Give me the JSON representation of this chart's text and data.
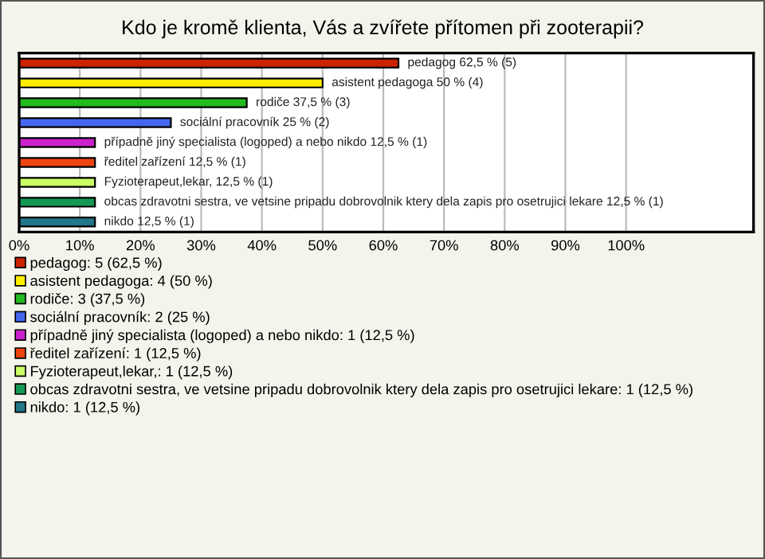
{
  "chart_data": {
    "type": "bar",
    "orientation": "horizontal",
    "title": "Kdo je kromě klienta, Vás a zvířete přítomen při zooterapii?",
    "categories": [
      null,
      null,
      null,
      null,
      null,
      null,
      null,
      null,
      null
    ],
    "series": [
      {
        "name": "pedagog: 5 (62,5 %)",
        "color": "#cc2200",
        "values": [
          62.5,
          null,
          null,
          null,
          null,
          null,
          null,
          null,
          null
        ],
        "value_labels": [
          "pedagog 62,5 % (5)",
          null,
          null,
          null,
          null,
          null,
          null,
          null,
          null
        ]
      },
      {
        "name": "asistent pedagoga: 4 (50 %)",
        "color": "#ffee00",
        "values": [
          null,
          50,
          null,
          null,
          null,
          null,
          null,
          null,
          null
        ],
        "value_labels": [
          null,
          "asistent pedagoga 50 % (4)",
          null,
          null,
          null,
          null,
          null,
          null,
          null
        ]
      },
      {
        "name": "rodiče: 3 (37,5 %)",
        "color": "#22bb22",
        "values": [
          null,
          null,
          37.5,
          null,
          null,
          null,
          null,
          null,
          null
        ],
        "value_labels": [
          null,
          null,
          "rodiče 37,5 % (3)",
          null,
          null,
          null,
          null,
          null,
          null
        ]
      },
      {
        "name": "sociální pracovník: 2 (25 %)",
        "color": "#4466ee",
        "values": [
          null,
          null,
          null,
          25,
          null,
          null,
          null,
          null,
          null
        ],
        "value_labels": [
          null,
          null,
          null,
          "sociální pracovník 25 % (2)",
          null,
          null,
          null,
          null,
          null
        ]
      },
      {
        "name": "případně jiný specialista (logoped) a nebo nikdo: 1 (12,5 %)",
        "color": "#cc22cc",
        "values": [
          null,
          null,
          null,
          null,
          12.5,
          null,
          null,
          null,
          null
        ],
        "value_labels": [
          null,
          null,
          null,
          null,
          "případně jiný specialista (logoped) a nebo nikdo 12,5 % (1)",
          null,
          null,
          null,
          null
        ]
      },
      {
        "name": "ředitel zařízení: 1 (12,5 %)",
        "color": "#ee4411",
        "values": [
          null,
          null,
          null,
          null,
          null,
          12.5,
          null,
          null,
          null
        ],
        "value_labels": [
          null,
          null,
          null,
          null,
          null,
          "ředitel zařízení 12,5 % (1)",
          null,
          null,
          null
        ]
      },
      {
        "name": "Fyzioterapeut,lekar,: 1 (12,5 %)",
        "color": "#ccff66",
        "values": [
          null,
          null,
          null,
          null,
          null,
          null,
          12.5,
          null,
          null
        ],
        "value_labels": [
          null,
          null,
          null,
          null,
          null,
          null,
          "Fyzioterapeut,lekar, 12,5 % (1)",
          null,
          null
        ]
      },
      {
        "name": "obcas zdravotni sestra, ve vetsine pripadu dobrovolnik ktery dela zapis pro osetrujici lekare: 1 (12,5 %)",
        "color": "#119955",
        "values": [
          null,
          null,
          null,
          null,
          null,
          null,
          null,
          12.5,
          null
        ],
        "value_labels": [
          null,
          null,
          null,
          null,
          null,
          null,
          null,
          "obcas zdravotni sestra, ve vetsine pripadu dobrovolnik ktery dela zapis pro osetrujici lekare 12,5 % (1)",
          null
        ]
      },
      {
        "name": "nikdo: 1 (12,5 %)",
        "color": "#227788",
        "values": [
          null,
          null,
          null,
          null,
          null,
          null,
          null,
          null,
          12.5
        ],
        "value_labels": [
          null,
          null,
          null,
          null,
          null,
          null,
          null,
          null,
          "nikdo 12,5 % (1)"
        ]
      }
    ],
    "xlim": [
      0,
      121
    ],
    "xticks": [
      {
        "value": 0,
        "label": "0%"
      },
      {
        "value": 10,
        "label": "10%"
      },
      {
        "value": 20,
        "label": "20%"
      },
      {
        "value": 30,
        "label": "30%"
      },
      {
        "value": 40,
        "label": "40%"
      },
      {
        "value": 50,
        "label": "50%"
      },
      {
        "value": 60,
        "label": "60%"
      },
      {
        "value": 70,
        "label": "70%"
      },
      {
        "value": 80,
        "label": "80%"
      },
      {
        "value": 90,
        "label": "90%"
      },
      {
        "value": 100,
        "label": "100%"
      }
    ],
    "grid": "x",
    "legend": "bottom",
    "tick_labels": "x"
  }
}
